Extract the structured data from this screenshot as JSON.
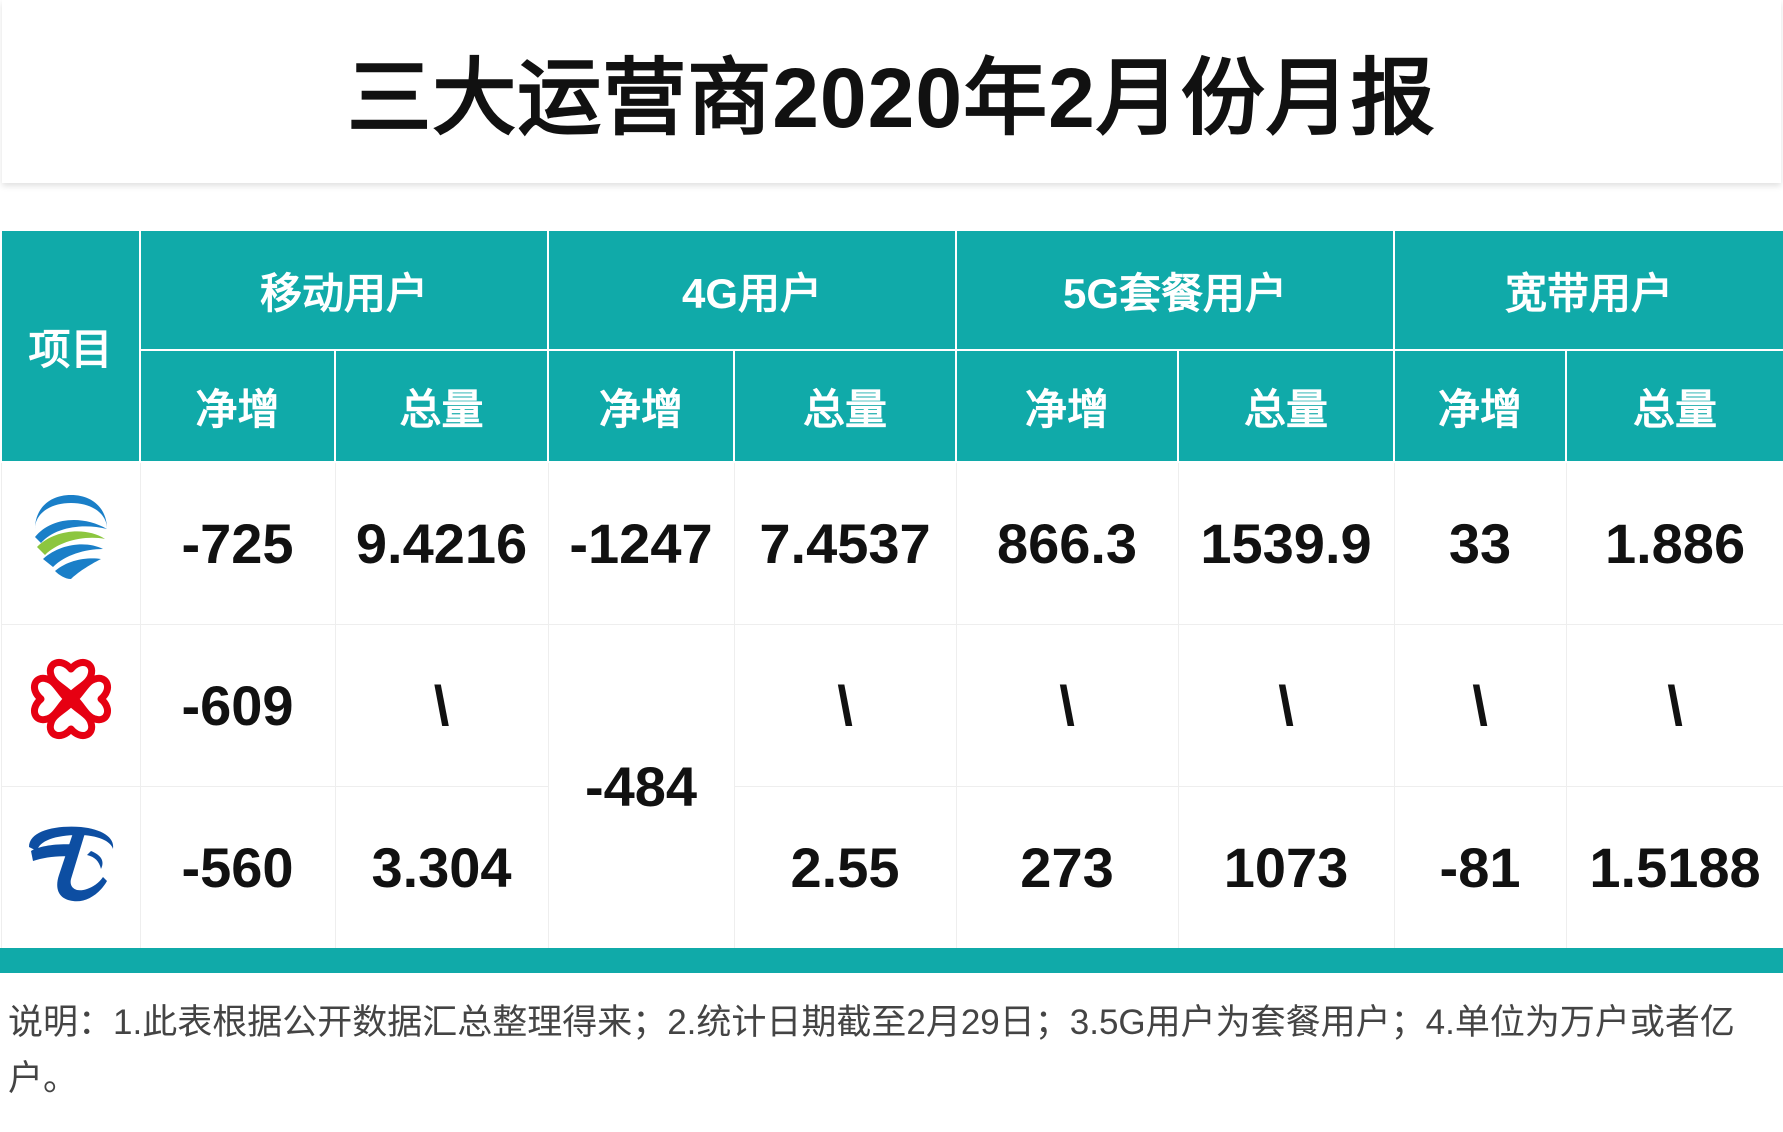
{
  "title": "三大运营商2020年2月份月报",
  "header": {
    "item_label": "项目",
    "groups": [
      "移动用户",
      "4G用户",
      "5G套餐用户",
      "宽带用户"
    ],
    "sub_net": "净增",
    "sub_total": "总量"
  },
  "rows": {
    "mobile": {
      "logo": "china-mobile-logo",
      "mobile_net": "-725",
      "mobile_total": "9.4216",
      "g4_net": "-1247",
      "g4_total": "7.4537",
      "g5_net": "866.3",
      "g5_total": "1539.9",
      "bb_net": "33",
      "bb_total": "1.886"
    },
    "unicom": {
      "logo": "china-unicom-logo",
      "mobile_net": "-609",
      "mobile_total": "\\",
      "g4_total": "\\",
      "g5_net": "\\",
      "g5_total": "\\",
      "bb_net": "\\",
      "bb_total": "\\"
    },
    "shared_g4_net": "-484",
    "telecom": {
      "logo": "china-telecom-logo",
      "mobile_net": "-560",
      "mobile_total": "3.304",
      "g4_total": "2.55",
      "g5_net": "273",
      "g5_total": "1073",
      "bb_net": "-81",
      "bb_total": "1.5188"
    }
  },
  "note": "说明：1.此表根据公开数据汇总整理得来；2.统计日期截至2月29日；3.5G用户为套餐用户；4.单位为万户或者亿户。",
  "colors": {
    "teal": "#10aaa9",
    "mobile_blue": "#1a7fc8",
    "mobile_green": "#8cc63f",
    "unicom_red": "#e60012",
    "telecom_blue": "#0d4ea2"
  }
}
